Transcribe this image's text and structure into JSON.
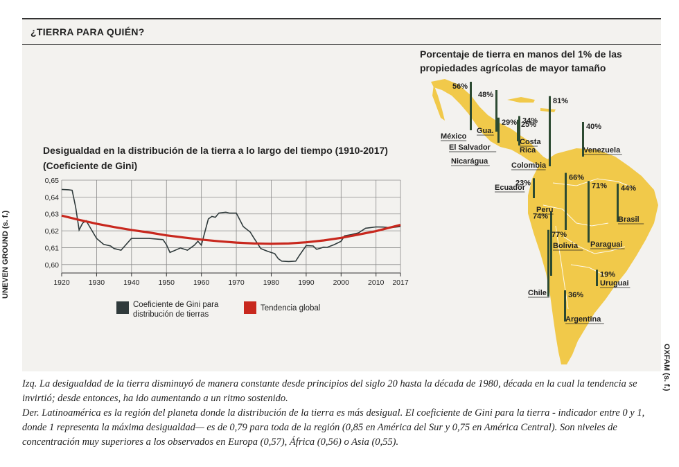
{
  "header": {
    "title": "¿TIERRA PARA QUIÉN?"
  },
  "source_left": "UNEVEN GROUND (s. f.)",
  "source_right": "OXFAM (s. f.)",
  "caption": {
    "line1": "Izq. La desigualdad de la tierra disminuyó de manera constante desde principios del siglo 20 hasta la década de 1980, década en la cual la tendencia se invirtió; desde entonces, ha ido aumentando a un ritmo sostenido.",
    "line2": "Der. Latinoamérica es la región del planeta donde la distribución de la tierra es más desigual. El coeficiente de Gini para la tierra - indicador entre 0 y 1, donde 1 representa la máxima desigualdad— es de 0,79 para toda de la región (0,85 en América del Sur y 0,75 en América Central). Son niveles de concentración muy superiores a los observados en Europa (0,57), África (0,56) o Asia (0,55)."
  },
  "colors": {
    "gini": "#2f3a3b",
    "trend": "#c8281e",
    "map": "#f1c94a",
    "bar": "#2c4a32"
  },
  "chart_data": [
    {
      "type": "line",
      "title": "Desigualdad en la distribución de la tierra a lo largo del tiempo (1910-2017)",
      "subtitle": "(Coeficiente de Gini)",
      "x_ticks": [
        "1920",
        "1930",
        "1940",
        "1950",
        "1960",
        "1970",
        "1980",
        "1990",
        "2000",
        "2010",
        "2017"
      ],
      "y_ticks": [
        "0,65",
        "0,64",
        "0,63",
        "0,62",
        "0,61",
        "0,60"
      ],
      "xlim": [
        1920,
        2017
      ],
      "ylim": [
        0.595,
        0.65
      ],
      "grid": true,
      "legend_position": "bottom",
      "series": [
        {
          "name": "Coeficiente de Gini para distribución de tierras",
          "x": [
            1920,
            1922,
            1923,
            1924,
            1925,
            1926,
            1927,
            1928,
            1930,
            1932,
            1934,
            1935,
            1937,
            1940,
            1945,
            1949,
            1950,
            1951,
            1952,
            1954,
            1956,
            1958,
            1959,
            1960,
            1962,
            1963,
            1964,
            1965,
            1967,
            1968,
            1970,
            1971,
            1972,
            1974,
            1975,
            1977,
            1979,
            1981,
            1982,
            1983,
            1985,
            1987,
            1988,
            1990,
            1992,
            1993,
            1995,
            1996,
            1998,
            2000,
            2001,
            2003,
            2005,
            2007,
            2010,
            2012,
            2014,
            2017
          ],
          "y": [
            0.6445,
            0.6443,
            0.644,
            0.634,
            0.6205,
            0.6245,
            0.626,
            0.6225,
            0.6155,
            0.612,
            0.611,
            0.6095,
            0.6085,
            0.6155,
            0.6155,
            0.6148,
            0.6118,
            0.6072,
            0.608,
            0.6098,
            0.6085,
            0.6115,
            0.6138,
            0.6115,
            0.627,
            0.6285,
            0.628,
            0.6305,
            0.631,
            0.6305,
            0.6305,
            0.6265,
            0.6225,
            0.6192,
            0.6158,
            0.6095,
            0.6078,
            0.6065,
            0.6035,
            0.602,
            0.6018,
            0.602,
            0.6052,
            0.6112,
            0.611,
            0.609,
            0.6103,
            0.6102,
            0.6118,
            0.6138,
            0.617,
            0.6178,
            0.6188,
            0.6215,
            0.6223,
            0.6222,
            0.6218,
            0.6225
          ]
        },
        {
          "name": "Tendencia global",
          "x": [
            1920,
            1925,
            1930,
            1935,
            1940,
            1945,
            1950,
            1955,
            1960,
            1965,
            1970,
            1975,
            1980,
            1985,
            1990,
            1995,
            2000,
            2005,
            2010,
            2017
          ],
          "y": [
            0.629,
            0.6265,
            0.6242,
            0.6222,
            0.6205,
            0.619,
            0.6173,
            0.616,
            0.6148,
            0.6138,
            0.613,
            0.6125,
            0.6123,
            0.6125,
            0.6132,
            0.6143,
            0.6158,
            0.6178,
            0.6198,
            0.6235
          ]
        }
      ],
      "legend": [
        "Coeficiente de Gini para distribución de tierras",
        "Tendencia global"
      ]
    },
    {
      "type": "bar",
      "title": "Porcentaje de tierra en manos del 1% de las propiedades agrícolas de mayor tamaño",
      "ylim": [
        0,
        100
      ],
      "categories": [
        "México",
        "Guatemala",
        "El Salvador",
        "Nicarágua",
        "Costa Rica",
        "Colombia",
        "Venezuela",
        "Ecuador",
        "Peru",
        "Bolivia",
        "Paraguai",
        "Brasil",
        "Chile",
        "Uruguai",
        "Argentina"
      ],
      "values": [
        56,
        48,
        29,
        25,
        34,
        81,
        40,
        23,
        74,
        66,
        71,
        44,
        77,
        19,
        36
      ],
      "labels": [
        "56%",
        "48%",
        "29%",
        "25%",
        "34%",
        "81%",
        "40%",
        "23%",
        "74%",
        "66%",
        "71%",
        "44%",
        "77%",
        "19%",
        "36%"
      ],
      "country_labels": [
        "México",
        "Gua.",
        "El Salvador",
        "Nicarágua",
        "Costa Rica",
        "Colombia",
        "Venezuela",
        "Ecuador",
        "Peru",
        "Bolivia",
        "Paraguai",
        "Brasil",
        "Chile",
        "Uruguai",
        "Argentina"
      ]
    }
  ],
  "line_legend": {
    "gini_line1": "Coeficiente de Gini para",
    "gini_line2": "distribución de tierras",
    "trend": "Tendencia global"
  },
  "map_labels": {
    "costa_rica_line1": "Costa",
    "costa_rica_line2": "Rica"
  }
}
